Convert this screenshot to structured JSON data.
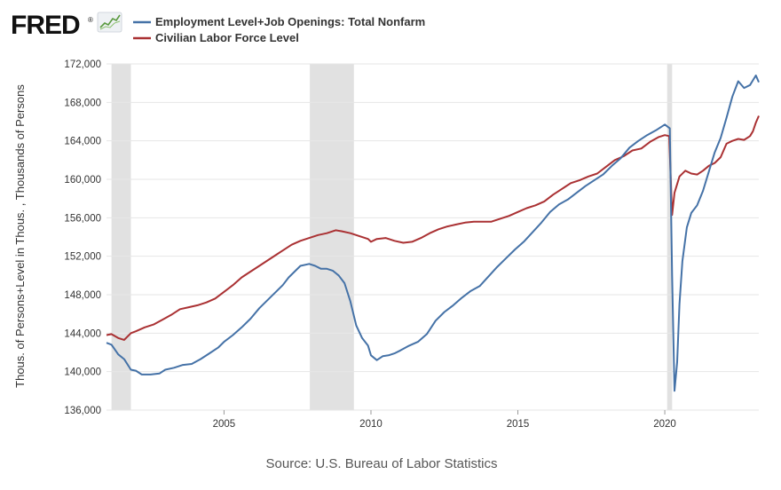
{
  "branding": {
    "logo_text": "FRED",
    "registered_mark": "®",
    "logo_icon": "line-chart-icon"
  },
  "source": {
    "text": "Source: U.S. Bureau of Labor Statistics"
  },
  "chart_data": {
    "type": "line",
    "title": "",
    "xlabel": "",
    "ylabel": "Thous. of Persons+Level in Thous. , Thousands of Persons",
    "xlim": [
      2001.0,
      2023.2
    ],
    "ylim": [
      136000,
      172000
    ],
    "y_ticks": [
      136000,
      140000,
      144000,
      148000,
      152000,
      156000,
      160000,
      164000,
      168000,
      172000
    ],
    "y_tick_labels": [
      "136,000",
      "140,000",
      "144,000",
      "148,000",
      "152,000",
      "156,000",
      "160,000",
      "164,000",
      "168,000",
      "172,000"
    ],
    "x_ticks": [
      2005,
      2010,
      2015,
      2020
    ],
    "x_tick_labels": [
      "2005",
      "2010",
      "2015",
      "2020"
    ],
    "grid": "horizontal",
    "legend_position": "top-left",
    "recessions": [
      [
        2001.17,
        2001.83
      ],
      [
        2007.92,
        2009.42
      ],
      [
        2020.08,
        2020.25
      ]
    ],
    "colors": {
      "recession_shading": "#e1e1e1",
      "grid": "#e6e6e6",
      "logo_chart_bg": "#eef1f4",
      "logo_chart_line": "#5a9a3f"
    },
    "series": [
      {
        "name": "Employment Level+Job Openings: Total Nonfarm",
        "color": "#4572a7",
        "x": [
          2001.0,
          2001.17,
          2001.4,
          2001.6,
          2001.83,
          2002.0,
          2002.2,
          2002.5,
          2002.8,
          2003.0,
          2003.3,
          2003.6,
          2003.9,
          2004.2,
          2004.5,
          2004.8,
          2005.0,
          2005.3,
          2005.6,
          2005.9,
          2006.2,
          2006.5,
          2006.8,
          2007.0,
          2007.2,
          2007.4,
          2007.6,
          2007.9,
          2008.1,
          2008.3,
          2008.5,
          2008.7,
          2008.9,
          2009.1,
          2009.3,
          2009.5,
          2009.7,
          2009.9,
          2010.0,
          2010.2,
          2010.4,
          2010.6,
          2010.8,
          2011.0,
          2011.3,
          2011.6,
          2011.9,
          2012.2,
          2012.5,
          2012.8,
          2013.1,
          2013.4,
          2013.7,
          2014.0,
          2014.3,
          2014.6,
          2014.9,
          2015.2,
          2015.5,
          2015.8,
          2016.1,
          2016.4,
          2016.7,
          2017.0,
          2017.3,
          2017.6,
          2017.9,
          2018.2,
          2018.5,
          2018.8,
          2019.1,
          2019.4,
          2019.7,
          2020.0,
          2020.17,
          2020.25,
          2020.33,
          2020.42,
          2020.5,
          2020.6,
          2020.75,
          2020.9,
          2021.1,
          2021.3,
          2021.5,
          2021.7,
          2021.9,
          2022.1,
          2022.3,
          2022.5,
          2022.7,
          2022.9,
          2023.0,
          2023.1,
          2023.2
        ],
        "values": [
          143000,
          142800,
          141800,
          141300,
          140200,
          140100,
          139700,
          139700,
          139800,
          140200,
          140400,
          140700,
          140800,
          141300,
          141900,
          142500,
          143100,
          143800,
          144600,
          145500,
          146600,
          147500,
          148400,
          149000,
          149800,
          150400,
          151000,
          151200,
          151000,
          150700,
          150700,
          150500,
          150000,
          149200,
          147300,
          144800,
          143500,
          142700,
          141700,
          141200,
          141600,
          141700,
          141900,
          142200,
          142700,
          143100,
          143900,
          145300,
          146200,
          146900,
          147700,
          148400,
          148900,
          149900,
          150900,
          151800,
          152700,
          153500,
          154500,
          155500,
          156600,
          157400,
          157900,
          158600,
          159300,
          159900,
          160500,
          161400,
          162200,
          163300,
          164000,
          164600,
          165100,
          165700,
          165300,
          150000,
          138000,
          141000,
          147000,
          151500,
          155000,
          156500,
          157300,
          158800,
          160800,
          162800,
          164300,
          166400,
          168600,
          170200,
          169500,
          169800,
          170300,
          170800,
          170100
        ]
      },
      {
        "name": "Civilian Labor Force Level",
        "color": "#aa3133",
        "x": [
          2001.0,
          2001.17,
          2001.4,
          2001.6,
          2001.83,
          2002.0,
          2002.3,
          2002.6,
          2002.9,
          2003.2,
          2003.5,
          2003.8,
          2004.1,
          2004.4,
          2004.7,
          2005.0,
          2005.3,
          2005.6,
          2005.9,
          2006.2,
          2006.5,
          2006.8,
          2007.0,
          2007.3,
          2007.6,
          2007.9,
          2008.2,
          2008.5,
          2008.8,
          2009.0,
          2009.3,
          2009.6,
          2009.9,
          2010.0,
          2010.2,
          2010.5,
          2010.8,
          2011.1,
          2011.4,
          2011.7,
          2012.0,
          2012.3,
          2012.6,
          2012.9,
          2013.2,
          2013.5,
          2013.8,
          2014.1,
          2014.4,
          2014.7,
          2015.0,
          2015.3,
          2015.6,
          2015.9,
          2016.2,
          2016.5,
          2016.8,
          2017.1,
          2017.4,
          2017.7,
          2018.0,
          2018.3,
          2018.6,
          2018.9,
          2019.2,
          2019.5,
          2019.8,
          2020.0,
          2020.15,
          2020.25,
          2020.33,
          2020.5,
          2020.7,
          2020.9,
          2021.1,
          2021.3,
          2021.5,
          2021.7,
          2021.9,
          2022.1,
          2022.3,
          2022.5,
          2022.7,
          2022.9,
          2023.0,
          2023.1,
          2023.2
        ],
        "values": [
          143800,
          143900,
          143500,
          143300,
          144000,
          144200,
          144600,
          144900,
          145400,
          145900,
          146500,
          146700,
          146900,
          147200,
          147600,
          148300,
          149000,
          149800,
          150400,
          151000,
          151600,
          152200,
          152600,
          153200,
          153600,
          153900,
          154200,
          154400,
          154700,
          154600,
          154400,
          154100,
          153800,
          153500,
          153800,
          153900,
          153600,
          153400,
          153500,
          153900,
          154400,
          154800,
          155100,
          155300,
          155500,
          155600,
          155600,
          155600,
          155900,
          156200,
          156600,
          157000,
          157300,
          157700,
          158400,
          159000,
          159600,
          159900,
          160300,
          160600,
          161300,
          162000,
          162400,
          163000,
          163200,
          163900,
          164400,
          164600,
          164500,
          156300,
          158600,
          160300,
          160900,
          160600,
          160500,
          160900,
          161400,
          161700,
          162300,
          163700,
          164000,
          164200,
          164100,
          164500,
          165000,
          165900,
          166600
        ]
      }
    ]
  }
}
